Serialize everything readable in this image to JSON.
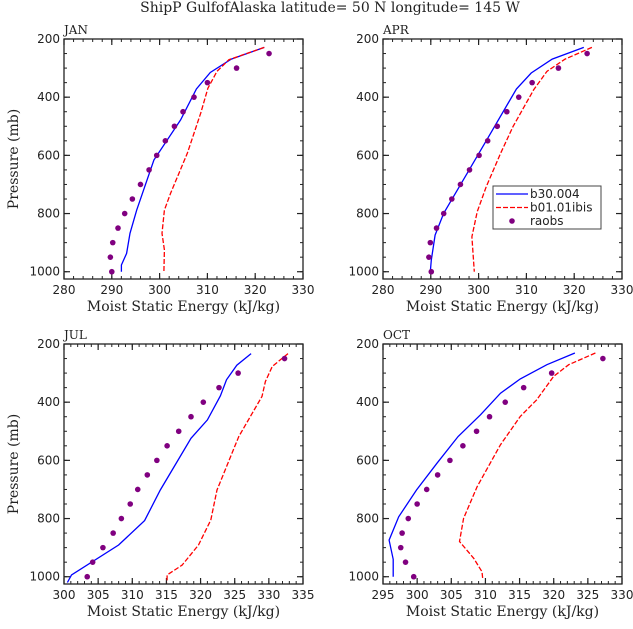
{
  "title": "ShipP GulfofAlaska  latitude= 50 N longitude= 145 W",
  "colors": {
    "b30_004": "#0000ff",
    "b01_01ibis": "#ff0000",
    "raobs": "#800080"
  },
  "chart_data": [
    {
      "type": "line",
      "panel_title": "JAN",
      "xlabel": "Moist Static Energy (kJ/kg)",
      "ylabel": "Pressure (mb)",
      "xlim": [
        280,
        330
      ],
      "xticks": [
        280,
        290,
        300,
        310,
        320,
        330
      ],
      "ylim": [
        200,
        1025
      ],
      "yticks": [
        200,
        400,
        600,
        800,
        1000
      ],
      "y_reversed": true,
      "grid": false,
      "series": [
        {
          "name": "b30.004",
          "style": "solid",
          "points": [
            [
              321.9,
              229
            ],
            [
              315.0,
              269
            ],
            [
              310.6,
              315
            ],
            [
              307.7,
              372
            ],
            [
              304.4,
              478
            ],
            [
              298.8,
              616
            ],
            [
              295.2,
              788
            ],
            [
              293.8,
              868
            ],
            [
              293.1,
              937
            ],
            [
              292.0,
              977
            ],
            [
              292.0,
              1000
            ]
          ]
        },
        {
          "name": "b01.01ibis",
          "style": "dashed",
          "points": [
            [
              321.9,
              229
            ],
            [
              314.5,
              271
            ],
            [
              312.0,
              311
            ],
            [
              310.1,
              369
            ],
            [
              308.6,
              455
            ],
            [
              305.8,
              593
            ],
            [
              302.3,
              730
            ],
            [
              301.0,
              788
            ],
            [
              300.5,
              868
            ],
            [
              301.0,
              925
            ],
            [
              300.9,
              1000
            ]
          ]
        },
        {
          "name": "raobs",
          "style": "markers",
          "points": [
            [
              322.9,
              250
            ],
            [
              316.1,
              300
            ],
            [
              310.0,
              350
            ],
            [
              307.2,
              400
            ],
            [
              304.9,
              450
            ],
            [
              303.1,
              500
            ],
            [
              301.2,
              550
            ],
            [
              299.4,
              600
            ],
            [
              297.8,
              650
            ],
            [
              296.0,
              700
            ],
            [
              294.3,
              750
            ],
            [
              292.7,
              800
            ],
            [
              291.3,
              850
            ],
            [
              290.2,
              900
            ],
            [
              289.7,
              950
            ],
            [
              290.0,
              1000
            ]
          ]
        }
      ]
    },
    {
      "type": "line",
      "panel_title": "APR",
      "xlabel": "Moist Static Energy (kJ/kg)",
      "ylabel": "",
      "xlim": [
        280,
        330
      ],
      "xticks": [
        280,
        290,
        300,
        310,
        320,
        330
      ],
      "ylim": [
        200,
        1025
      ],
      "yticks": [
        200,
        400,
        600,
        800,
        1000
      ],
      "y_reversed": true,
      "grid": false,
      "legend": {
        "placement": "center-right",
        "entries": [
          "b30.004",
          "b01.01ibis",
          "raobs"
        ]
      },
      "series": [
        {
          "name": "b30.004",
          "style": "solid",
          "points": [
            [
              322.0,
              229
            ],
            [
              315.4,
              269
            ],
            [
              311.0,
              317
            ],
            [
              307.9,
              372
            ],
            [
              302.5,
              524
            ],
            [
              297.6,
              662
            ],
            [
              292.7,
              799
            ],
            [
              290.9,
              874
            ],
            [
              290.1,
              960
            ],
            [
              289.9,
              1000
            ]
          ]
        },
        {
          "name": "b01.01ibis",
          "style": "dashed",
          "points": [
            [
              323.7,
              229
            ],
            [
              318.1,
              269
            ],
            [
              314.3,
              311
            ],
            [
              311.5,
              375
            ],
            [
              307.2,
              501
            ],
            [
              304.6,
              593
            ],
            [
              301.6,
              708
            ],
            [
              299.7,
              794
            ],
            [
              298.6,
              880
            ],
            [
              299.1,
              1000
            ]
          ]
        },
        {
          "name": "raobs",
          "style": "markers",
          "points": [
            [
              322.7,
              250
            ],
            [
              316.7,
              300
            ],
            [
              311.2,
              350
            ],
            [
              308.4,
              400
            ],
            [
              305.9,
              450
            ],
            [
              303.9,
              500
            ],
            [
              301.9,
              550
            ],
            [
              300.1,
              600
            ],
            [
              298.1,
              650
            ],
            [
              296.2,
              700
            ],
            [
              294.4,
              750
            ],
            [
              292.7,
              800
            ],
            [
              291.2,
              850
            ],
            [
              289.9,
              900
            ],
            [
              289.6,
              950
            ],
            [
              290.1,
              1000
            ]
          ]
        }
      ]
    },
    {
      "type": "line",
      "panel_title": "JUL",
      "xlabel": "Moist Static Energy (kJ/kg)",
      "ylabel": "Pressure (mb)",
      "xlim": [
        300,
        335
      ],
      "xticks": [
        300,
        305,
        310,
        315,
        320,
        325,
        330,
        335
      ],
      "ylim": [
        200,
        1025
      ],
      "yticks": [
        200,
        400,
        600,
        800,
        1000
      ],
      "y_reversed": true,
      "grid": false,
      "series": [
        {
          "name": "b30.004",
          "style": "solid",
          "points": [
            [
              327.4,
              233
            ],
            [
              325.3,
              273
            ],
            [
              323.8,
              323
            ],
            [
              322.9,
              378
            ],
            [
              321.0,
              461
            ],
            [
              318.6,
              524
            ],
            [
              314.1,
              702
            ],
            [
              311.8,
              807
            ],
            [
              308.0,
              891
            ],
            [
              301.1,
              994
            ],
            [
              300.5,
              1020
            ]
          ]
        },
        {
          "name": "b01.01ibis",
          "style": "dashed",
          "points": [
            [
              332.8,
              233
            ],
            [
              330.5,
              277
            ],
            [
              329.5,
              329
            ],
            [
              329.0,
              380
            ],
            [
              325.6,
              518
            ],
            [
              322.4,
              702
            ],
            [
              321.5,
              805
            ],
            [
              319.7,
              891
            ],
            [
              317.3,
              960
            ],
            [
              315.1,
              994
            ],
            [
              315.1,
              1020
            ]
          ]
        },
        {
          "name": "raobs",
          "style": "markers",
          "points": [
            [
              332.3,
              250
            ],
            [
              325.5,
              300
            ],
            [
              322.7,
              350
            ],
            [
              320.4,
              400
            ],
            [
              318.6,
              450
            ],
            [
              316.8,
              500
            ],
            [
              315.1,
              550
            ],
            [
              313.6,
              600
            ],
            [
              312.2,
              650
            ],
            [
              310.8,
              700
            ],
            [
              309.7,
              750
            ],
            [
              308.4,
              800
            ],
            [
              307.2,
              850
            ],
            [
              305.7,
              900
            ],
            [
              304.2,
              950
            ],
            [
              303.4,
              1000
            ]
          ]
        }
      ]
    },
    {
      "type": "line",
      "panel_title": "OCT",
      "xlabel": "Moist Static Energy (kJ/kg)",
      "ylabel": "",
      "xlim": [
        295,
        330
      ],
      "xticks": [
        295,
        300,
        305,
        310,
        315,
        320,
        325,
        330
      ],
      "ylim": [
        200,
        1025
      ],
      "yticks": [
        200,
        400,
        600,
        800,
        1000
      ],
      "y_reversed": true,
      "grid": false,
      "series": [
        {
          "name": "b30.004",
          "style": "solid",
          "points": [
            [
              323.1,
              231
            ],
            [
              319.0,
              271
            ],
            [
              315.1,
              320
            ],
            [
              312.2,
              369
            ],
            [
              309.3,
              443
            ],
            [
              306.0,
              518
            ],
            [
              302.9,
              610
            ],
            [
              299.9,
              702
            ],
            [
              297.3,
              794
            ],
            [
              295.9,
              874
            ],
            [
              296.5,
              940
            ],
            [
              296.5,
              1000
            ]
          ]
        },
        {
          "name": "b01.01ibis",
          "style": "dashed",
          "points": [
            [
              326.1,
              231
            ],
            [
              322.2,
              271
            ],
            [
              320.0,
              311
            ],
            [
              317.5,
              392
            ],
            [
              315.1,
              449
            ],
            [
              312.2,
              546
            ],
            [
              308.8,
              690
            ],
            [
              306.8,
              799
            ],
            [
              306.2,
              879
            ],
            [
              308.3,
              937
            ],
            [
              309.5,
              983
            ],
            [
              309.6,
              1006
            ]
          ]
        },
        {
          "name": "raobs",
          "style": "markers",
          "points": [
            [
              327.2,
              250
            ],
            [
              319.7,
              300
            ],
            [
              315.6,
              350
            ],
            [
              312.9,
              400
            ],
            [
              310.6,
              450
            ],
            [
              308.7,
              500
            ],
            [
              306.7,
              550
            ],
            [
              304.8,
              600
            ],
            [
              303.0,
              650
            ],
            [
              301.4,
              700
            ],
            [
              300.0,
              750
            ],
            [
              298.7,
              800
            ],
            [
              297.8,
              850
            ],
            [
              297.6,
              900
            ],
            [
              298.3,
              950
            ],
            [
              299.5,
              1000
            ]
          ]
        }
      ]
    }
  ]
}
